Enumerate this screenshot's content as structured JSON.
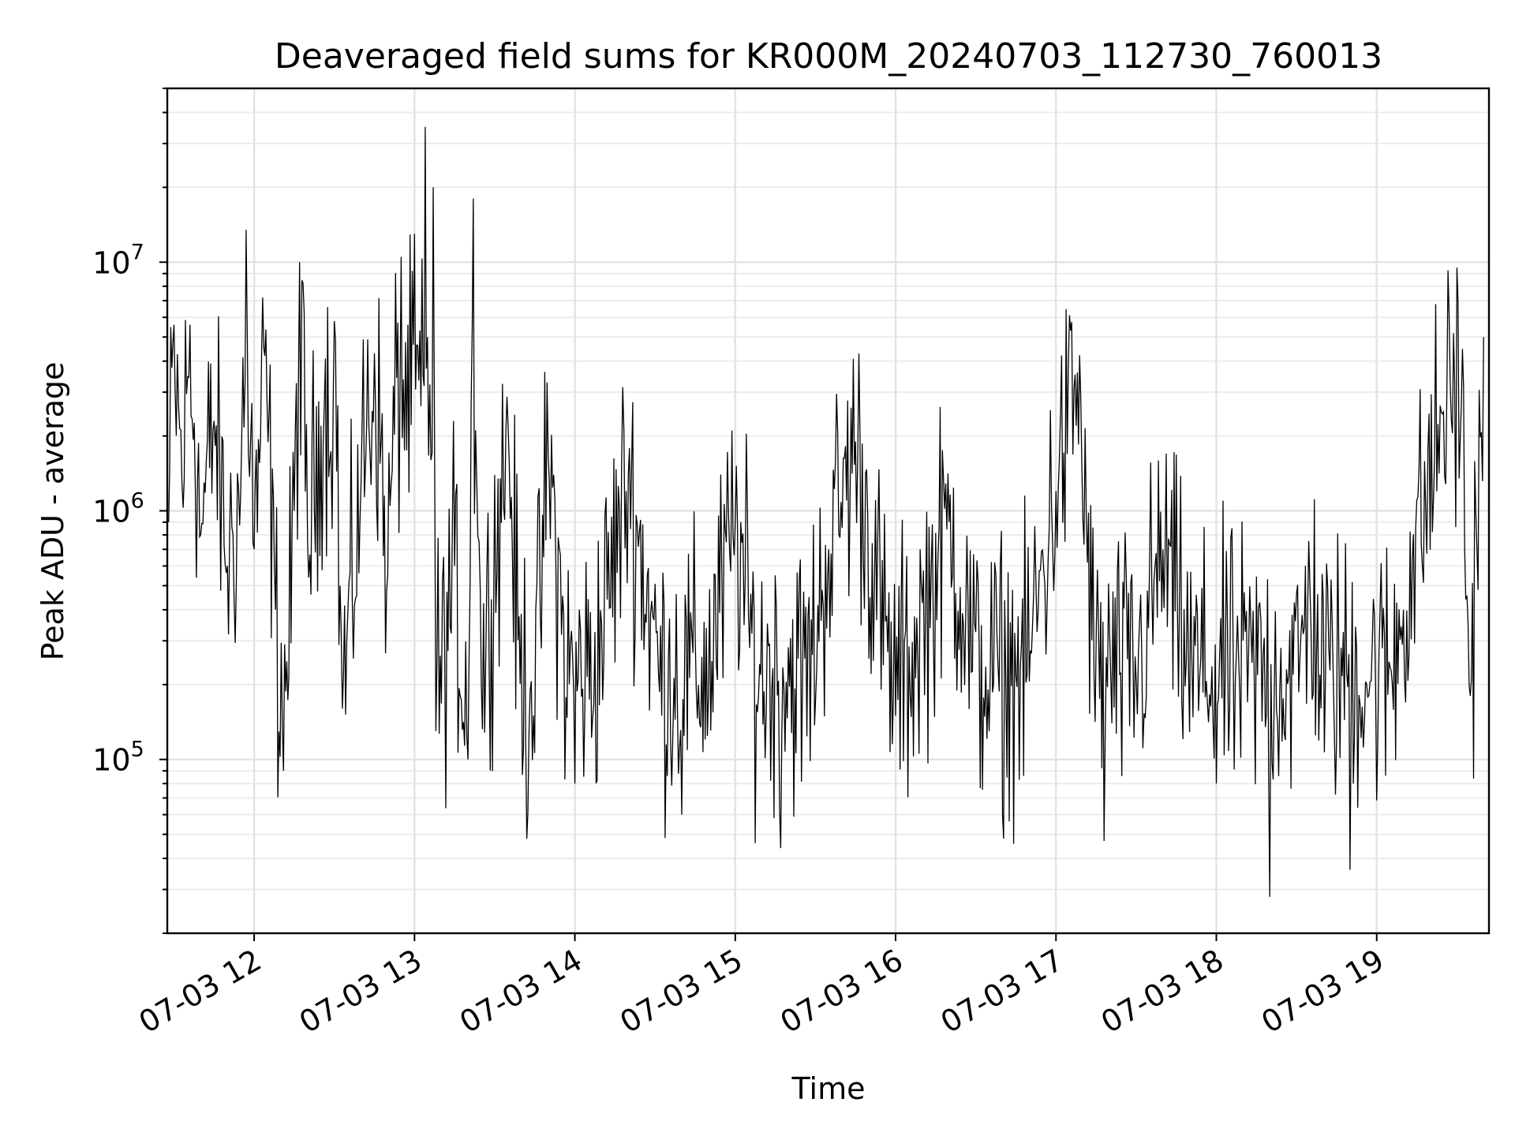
{
  "chart_data": {
    "type": "line",
    "title": "Deaveraged field sums for KR000M_20240703_112730_760013",
    "xlabel": "Time",
    "ylabel": "Peak ADU - average",
    "yscale": "log",
    "xlim": [
      "2024-07-03 11:27:30",
      "2024-07-03 19:42:00"
    ],
    "ylim": [
      20000,
      50000000
    ],
    "grid": true,
    "line_color": "#000000",
    "x_ticks": [
      "2024-07-03 12:00",
      "2024-07-03 13:00",
      "2024-07-03 14:00",
      "2024-07-03 15:00",
      "2024-07-03 16:00",
      "2024-07-03 17:00",
      "2024-07-03 18:00",
      "2024-07-03 19:00"
    ],
    "x_tick_labels": [
      "07-03 12",
      "07-03 13",
      "07-03 14",
      "07-03 15",
      "07-03 16",
      "07-03 17",
      "07-03 18",
      "07-03 19"
    ],
    "y_ticks": [
      100000,
      1000000,
      10000000
    ],
    "y_tick_labels": [
      {
        "base": "10",
        "exp": "5"
      },
      {
        "base": "10",
        "exp": "6"
      },
      {
        "base": "10",
        "exp": "7"
      }
    ],
    "series": [
      {
        "points": [
          [
            "2024-07-03 11:28",
            900000
          ],
          [
            "2024-07-03 11:30",
            5600000
          ],
          [
            "2024-07-03 11:33",
            1300000
          ],
          [
            "2024-07-03 11:36",
            5600000
          ],
          [
            "2024-07-03 11:40",
            800000
          ],
          [
            "2024-07-03 11:45",
            2300000
          ],
          [
            "2024-07-03 11:50",
            600000
          ],
          [
            "2024-07-03 11:55",
            1200000
          ],
          [
            "2024-07-03 11:57",
            13500000
          ],
          [
            "2024-07-03 12:00",
            700000
          ],
          [
            "2024-07-03 12:04",
            4200000
          ],
          [
            "2024-07-03 12:08",
            400000
          ],
          [
            "2024-07-03 12:11",
            90000
          ],
          [
            "2024-07-03 12:15",
            1000000
          ],
          [
            "2024-07-03 12:17",
            10000000
          ],
          [
            "2024-07-03 12:20",
            750000
          ],
          [
            "2024-07-03 12:25",
            2200000
          ],
          [
            "2024-07-03 12:30",
            5800000
          ],
          [
            "2024-07-03 12:33",
            160000
          ],
          [
            "2024-07-03 12:40",
            1300000
          ],
          [
            "2024-07-03 12:45",
            4300000
          ],
          [
            "2024-07-03 12:50",
            550000
          ],
          [
            "2024-07-03 12:55",
            10500000
          ],
          [
            "2024-07-03 13:00",
            13000000
          ],
          [
            "2024-07-03 13:04",
            35000000
          ],
          [
            "2024-07-03 13:07",
            20000000
          ],
          [
            "2024-07-03 13:08",
            130000
          ],
          [
            "2024-07-03 13:15",
            600000
          ],
          [
            "2024-07-03 13:20",
            100000
          ],
          [
            "2024-07-03 13:22",
            18000000
          ],
          [
            "2024-07-03 13:25",
            200000
          ],
          [
            "2024-07-03 13:35",
            2200000
          ],
          [
            "2024-07-03 13:42",
            48000
          ],
          [
            "2024-07-03 13:50",
            1700000
          ],
          [
            "2024-07-03 14:00",
            80000
          ],
          [
            "2024-07-03 14:20",
            1400000
          ],
          [
            "2024-07-03 14:40",
            60000
          ],
          [
            "2024-07-03 15:00",
            900000
          ],
          [
            "2024-07-03 15:17",
            44000
          ],
          [
            "2024-07-03 15:35",
            700000
          ],
          [
            "2024-07-03 15:45",
            1900000
          ],
          [
            "2024-07-03 16:00",
            150000
          ],
          [
            "2024-07-03 16:20",
            900000
          ],
          [
            "2024-07-03 16:40",
            60000
          ],
          [
            "2024-07-03 17:00",
            1200000
          ],
          [
            "2024-07-03 17:08",
            3600000
          ],
          [
            "2024-07-03 17:18",
            47000
          ],
          [
            "2024-07-03 17:40",
            700000
          ],
          [
            "2024-07-03 18:00",
            80000
          ],
          [
            "2024-07-03 18:20",
            28000
          ],
          [
            "2024-07-03 18:35",
            500000
          ],
          [
            "2024-07-03 18:50",
            36000
          ],
          [
            "2024-07-03 19:10",
            400000
          ],
          [
            "2024-07-03 19:25",
            2500000
          ],
          [
            "2024-07-03 19:30",
            9500000
          ],
          [
            "2024-07-03 19:35",
            180000
          ],
          [
            "2024-07-03 19:40",
            5000000
          ]
        ]
      }
    ]
  }
}
